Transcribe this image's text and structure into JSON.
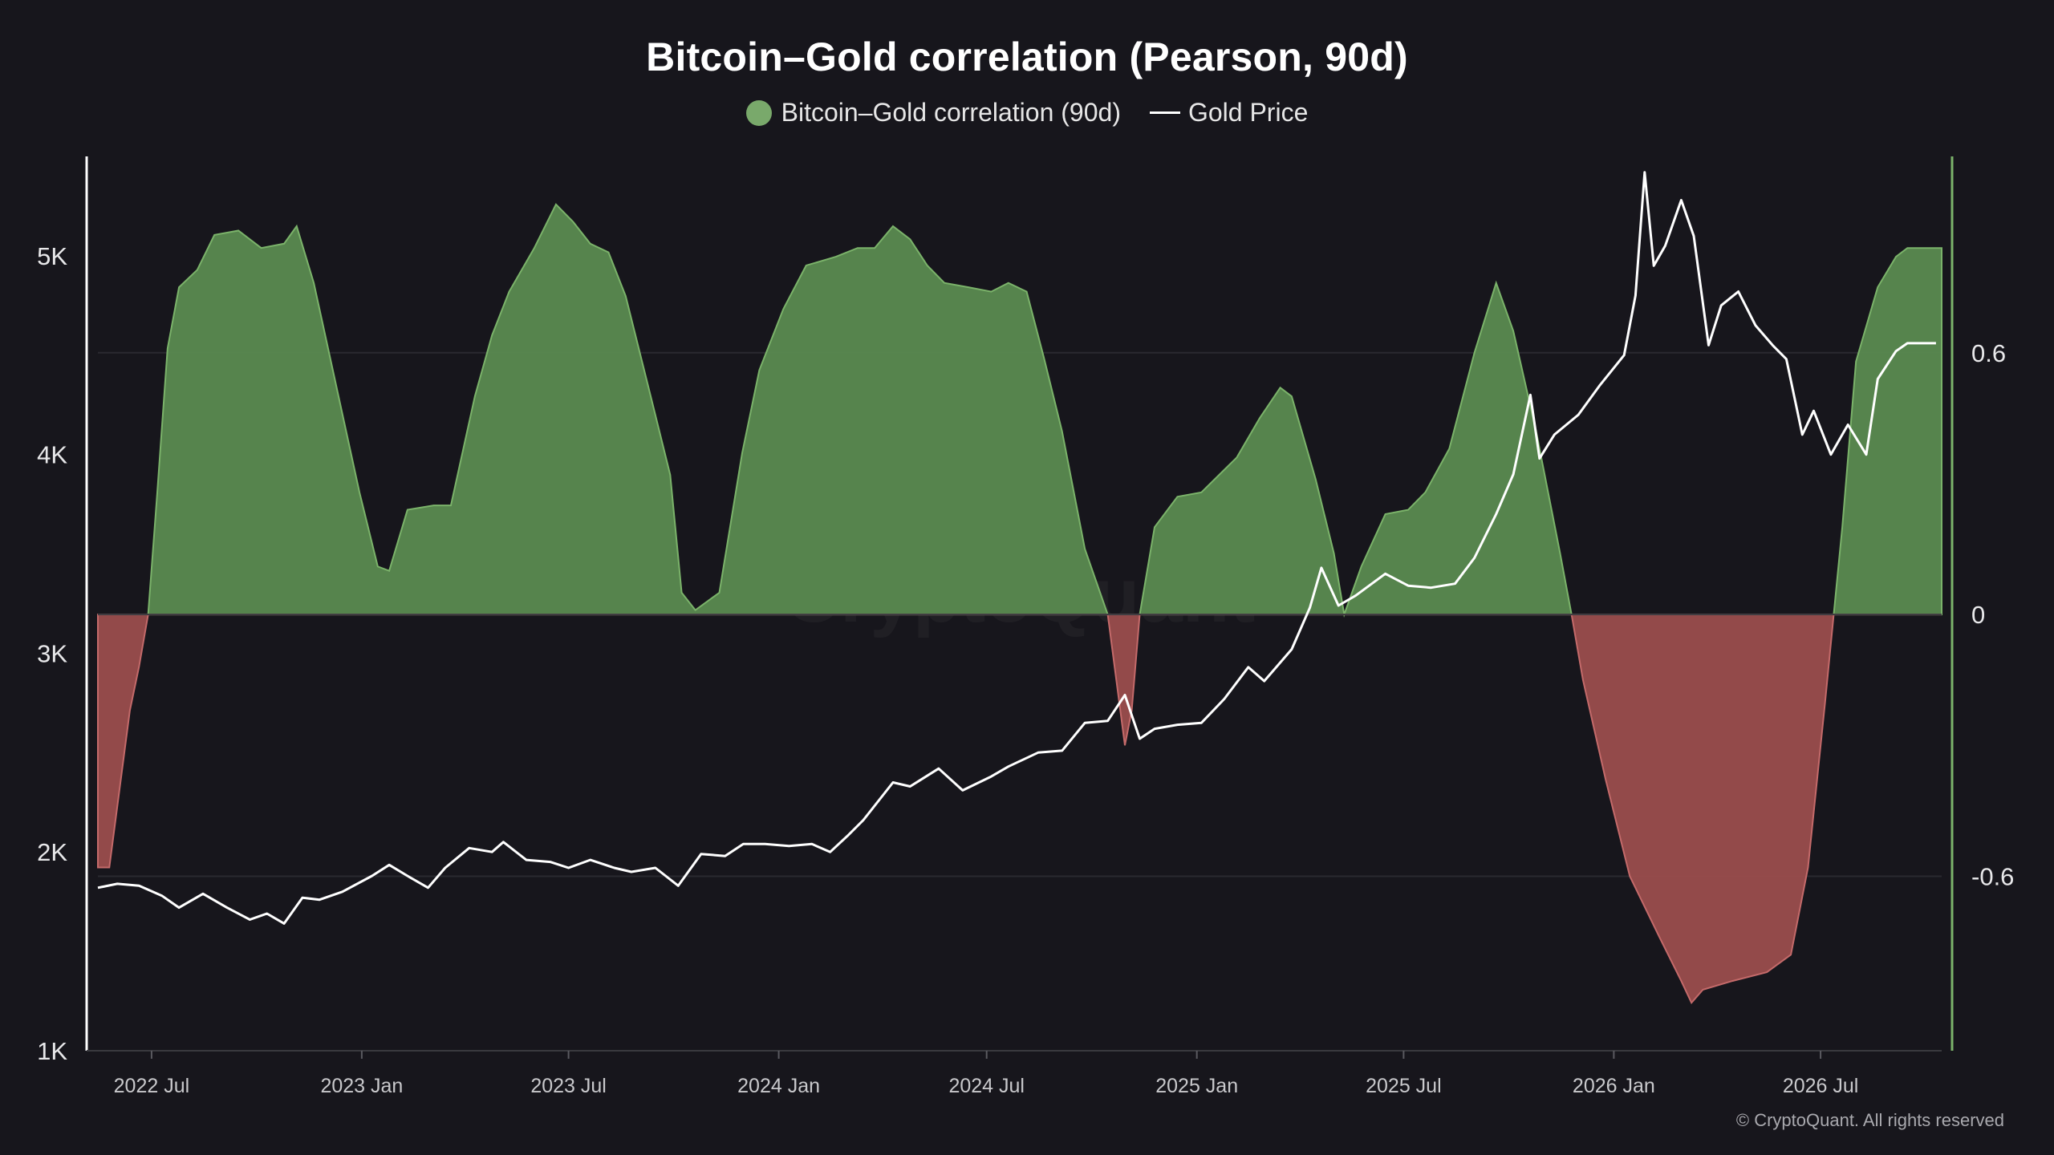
{
  "chart_data": {
    "type": "area",
    "title": "Bitcoin–Gold correlation (Pearson, 90d)",
    "watermark": "CryptoQuant",
    "copyright": "© CryptoQuant. All rights reserved",
    "x_ticks": [
      "2022 Jul",
      "2023 Jan",
      "2023 Jul",
      "2024 Jan",
      "2024 Jul",
      "2025 Jan",
      "2025 Jul",
      "2026 Jan",
      "2026 Jul"
    ],
    "x_range": [
      "2022-05-15",
      "2026-10-15"
    ],
    "y_left": {
      "ticks": [
        "1K",
        "2K",
        "3K",
        "4K",
        "5K"
      ],
      "min": 1000,
      "max": 5500
    },
    "y_right": {
      "ticks": [
        "0.6",
        "0",
        "-0.6"
      ],
      "min": -1.0,
      "max": 1.05
    },
    "grid": true,
    "legend_position": "top-center",
    "colors": {
      "positive": "#5a8a50",
      "positive_line": "#7bb36a",
      "negative": "#9a4d4d",
      "negative_line": "#c46a6a",
      "gold_line": "#ffffff",
      "legend_dot": "#79a96b"
    },
    "series": [
      {
        "name": "Bitcoin–Gold correlation (90d)",
        "axis": "right",
        "points": [
          [
            "2022-05-15",
            -0.58
          ],
          [
            "2022-05-25",
            -0.58
          ],
          [
            "2022-06-05",
            -0.36
          ],
          [
            "2022-06-12",
            -0.22
          ],
          [
            "2022-06-20",
            -0.12
          ],
          [
            "2022-06-28",
            0.0
          ],
          [
            "2022-07-06",
            0.28
          ],
          [
            "2022-07-15",
            0.61
          ],
          [
            "2022-07-25",
            0.75
          ],
          [
            "2022-08-10",
            0.79
          ],
          [
            "2022-08-25",
            0.87
          ],
          [
            "2022-09-15",
            0.88
          ],
          [
            "2022-10-05",
            0.84
          ],
          [
            "2022-10-25",
            0.85
          ],
          [
            "2022-11-05",
            0.89
          ],
          [
            "2022-11-20",
            0.76
          ],
          [
            "2022-12-10",
            0.52
          ],
          [
            "2022-12-30",
            0.28
          ],
          [
            "2023-01-15",
            0.11
          ],
          [
            "2023-01-25",
            0.1
          ],
          [
            "2023-02-10",
            0.24
          ],
          [
            "2023-03-05",
            0.25
          ],
          [
            "2023-03-20",
            0.25
          ],
          [
            "2023-04-10",
            0.5
          ],
          [
            "2023-04-25",
            0.64
          ],
          [
            "2023-05-10",
            0.74
          ],
          [
            "2023-06-01",
            0.84
          ],
          [
            "2023-06-20",
            0.94
          ],
          [
            "2023-07-05",
            0.9
          ],
          [
            "2023-07-20",
            0.85
          ],
          [
            "2023-08-05",
            0.83
          ],
          [
            "2023-08-20",
            0.73
          ],
          [
            "2023-09-10",
            0.51
          ],
          [
            "2023-09-28",
            0.32
          ],
          [
            "2023-10-08",
            0.05
          ],
          [
            "2023-10-20",
            0.01
          ],
          [
            "2023-11-10",
            0.05
          ],
          [
            "2023-11-30",
            0.37
          ],
          [
            "2023-12-15",
            0.56
          ],
          [
            "2024-01-05",
            0.7
          ],
          [
            "2024-01-25",
            0.8
          ],
          [
            "2024-02-20",
            0.82
          ],
          [
            "2024-03-10",
            0.84
          ],
          [
            "2024-03-25",
            0.84
          ],
          [
            "2024-04-10",
            0.89
          ],
          [
            "2024-04-25",
            0.86
          ],
          [
            "2024-05-10",
            0.8
          ],
          [
            "2024-05-25",
            0.76
          ],
          [
            "2024-06-15",
            0.75
          ],
          [
            "2024-07-05",
            0.74
          ],
          [
            "2024-07-20",
            0.76
          ],
          [
            "2024-08-05",
            0.74
          ],
          [
            "2024-08-20",
            0.59
          ],
          [
            "2024-09-05",
            0.42
          ],
          [
            "2024-09-25",
            0.15
          ],
          [
            "2024-10-15",
            0.0
          ],
          [
            "2024-10-25",
            -0.2
          ],
          [
            "2024-10-30",
            -0.3
          ],
          [
            "2024-11-05",
            -0.22
          ],
          [
            "2024-11-12",
            0.0
          ],
          [
            "2024-11-25",
            0.2
          ],
          [
            "2024-12-15",
            0.27
          ],
          [
            "2025-01-05",
            0.28
          ],
          [
            "2025-02-05",
            0.36
          ],
          [
            "2025-02-25",
            0.45
          ],
          [
            "2025-03-15",
            0.52
          ],
          [
            "2025-03-25",
            0.5
          ],
          [
            "2025-04-15",
            0.31
          ],
          [
            "2025-05-01",
            0.14
          ],
          [
            "2025-05-10",
            0.0
          ],
          [
            "2025-05-25",
            0.11
          ],
          [
            "2025-06-15",
            0.23
          ],
          [
            "2025-07-05",
            0.24
          ],
          [
            "2025-07-20",
            0.28
          ],
          [
            "2025-08-10",
            0.38
          ],
          [
            "2025-09-01",
            0.6
          ],
          [
            "2025-09-20",
            0.76
          ],
          [
            "2025-10-05",
            0.65
          ],
          [
            "2025-10-25",
            0.42
          ],
          [
            "2025-11-15",
            0.14
          ],
          [
            "2025-11-25",
            0.0
          ],
          [
            "2025-12-05",
            -0.15
          ],
          [
            "2025-12-25",
            -0.38
          ],
          [
            "2026-01-15",
            -0.6
          ],
          [
            "2026-02-10",
            -0.74
          ],
          [
            "2026-03-01",
            -0.84
          ],
          [
            "2026-03-10",
            -0.89
          ],
          [
            "2026-03-20",
            -0.86
          ],
          [
            "2026-04-15",
            -0.84
          ],
          [
            "2026-05-15",
            -0.82
          ],
          [
            "2026-06-05",
            -0.78
          ],
          [
            "2026-06-20",
            -0.58
          ],
          [
            "2026-07-05",
            -0.2
          ],
          [
            "2026-07-20",
            0.2
          ],
          [
            "2026-08-01",
            0.58
          ],
          [
            "2026-08-20",
            0.75
          ],
          [
            "2026-09-05",
            0.82
          ],
          [
            "2026-09-15",
            0.84
          ],
          [
            "2026-10-15",
            0.84
          ]
        ]
      },
      {
        "name": "Gold Price",
        "axis": "left",
        "points": [
          [
            "2022-05-15",
            1820
          ],
          [
            "2022-06-01",
            1840
          ],
          [
            "2022-06-20",
            1830
          ],
          [
            "2022-07-10",
            1780
          ],
          [
            "2022-07-25",
            1720
          ],
          [
            "2022-08-15",
            1790
          ],
          [
            "2022-09-05",
            1720
          ],
          [
            "2022-09-25",
            1660
          ],
          [
            "2022-10-10",
            1690
          ],
          [
            "2022-10-25",
            1640
          ],
          [
            "2022-11-10",
            1770
          ],
          [
            "2022-11-25",
            1760
          ],
          [
            "2022-12-15",
            1800
          ],
          [
            "2023-01-10",
            1880
          ],
          [
            "2023-01-25",
            1935
          ],
          [
            "2023-02-10",
            1880
          ],
          [
            "2023-02-28",
            1820
          ],
          [
            "2023-03-15",
            1920
          ],
          [
            "2023-04-05",
            2020
          ],
          [
            "2023-04-25",
            2000
          ],
          [
            "2023-05-05",
            2050
          ],
          [
            "2023-05-25",
            1960
          ],
          [
            "2023-06-15",
            1950
          ],
          [
            "2023-07-01",
            1920
          ],
          [
            "2023-07-20",
            1960
          ],
          [
            "2023-08-10",
            1920
          ],
          [
            "2023-08-25",
            1900
          ],
          [
            "2023-09-15",
            1920
          ],
          [
            "2023-10-05",
            1830
          ],
          [
            "2023-10-25",
            1990
          ],
          [
            "2023-11-15",
            1980
          ],
          [
            "2023-12-01",
            2040
          ],
          [
            "2023-12-20",
            2040
          ],
          [
            "2024-01-10",
            2030
          ],
          [
            "2024-01-30",
            2040
          ],
          [
            "2024-02-15",
            2000
          ],
          [
            "2024-03-01",
            2080
          ],
          [
            "2024-03-15",
            2160
          ],
          [
            "2024-04-10",
            2350
          ],
          [
            "2024-04-25",
            2330
          ],
          [
            "2024-05-20",
            2420
          ],
          [
            "2024-06-10",
            2310
          ],
          [
            "2024-07-05",
            2380
          ],
          [
            "2024-07-20",
            2430
          ],
          [
            "2024-08-15",
            2500
          ],
          [
            "2024-09-05",
            2510
          ],
          [
            "2024-09-25",
            2650
          ],
          [
            "2024-10-15",
            2660
          ],
          [
            "2024-10-30",
            2790
          ],
          [
            "2024-11-12",
            2570
          ],
          [
            "2024-11-25",
            2620
          ],
          [
            "2024-12-15",
            2640
          ],
          [
            "2025-01-05",
            2650
          ],
          [
            "2025-01-25",
            2770
          ],
          [
            "2025-02-15",
            2930
          ],
          [
            "2025-03-01",
            2860
          ],
          [
            "2025-03-25",
            3020
          ],
          [
            "2025-04-10",
            3230
          ],
          [
            "2025-04-20",
            3430
          ],
          [
            "2025-05-05",
            3240
          ],
          [
            "2025-05-20",
            3290
          ],
          [
            "2025-06-15",
            3400
          ],
          [
            "2025-07-05",
            3340
          ],
          [
            "2025-07-25",
            3330
          ],
          [
            "2025-08-15",
            3350
          ],
          [
            "2025-09-01",
            3480
          ],
          [
            "2025-09-20",
            3700
          ],
          [
            "2025-10-05",
            3900
          ],
          [
            "2025-10-20",
            4300
          ],
          [
            "2025-10-28",
            3980
          ],
          [
            "2025-11-10",
            4100
          ],
          [
            "2025-12-01",
            4200
          ],
          [
            "2025-12-20",
            4350
          ],
          [
            "2026-01-10",
            4500
          ],
          [
            "2026-01-20",
            4800
          ],
          [
            "2026-01-28",
            5420
          ],
          [
            "2026-02-05",
            4950
          ],
          [
            "2026-02-15",
            5050
          ],
          [
            "2026-03-01",
            5280
          ],
          [
            "2026-03-12",
            5100
          ],
          [
            "2026-03-25",
            4550
          ],
          [
            "2026-04-05",
            4750
          ],
          [
            "2026-04-20",
            4820
          ],
          [
            "2026-05-05",
            4650
          ],
          [
            "2026-05-20",
            4550
          ],
          [
            "2026-06-01",
            4480
          ],
          [
            "2026-06-15",
            4100
          ],
          [
            "2026-06-25",
            4220
          ],
          [
            "2026-07-10",
            4000
          ],
          [
            "2026-07-25",
            4150
          ],
          [
            "2026-08-10",
            4000
          ],
          [
            "2026-08-20",
            4380
          ],
          [
            "2026-09-05",
            4520
          ],
          [
            "2026-09-15",
            4560
          ],
          [
            "2026-10-10",
            4560
          ]
        ]
      }
    ]
  }
}
